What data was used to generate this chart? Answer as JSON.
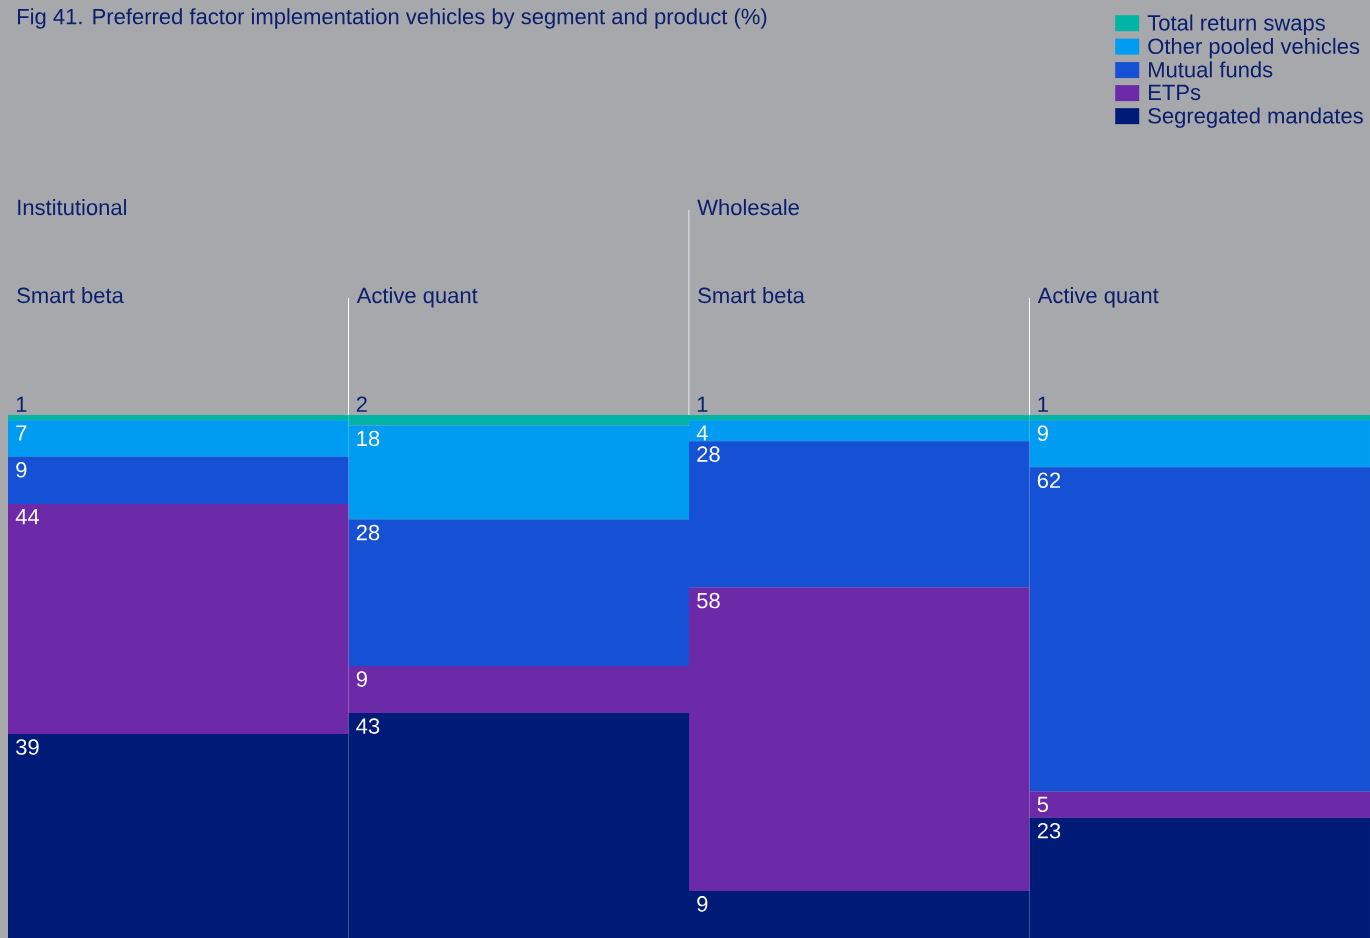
{
  "chart_data": {
    "type": "bar",
    "title": "Fig 41. Preferred factor implementation vehicles by segment and product (%)",
    "categories": [
      "Smart beta",
      "Active quant",
      "Smart beta",
      "Active quant"
    ],
    "annotations": [
      "Institutional",
      "Wholesale"
    ],
    "stacked": true,
    "data_labels": true,
    "legend": "top right",
    "series": [
      {
        "name": "Segregated mandates",
        "color": "#001a78",
        "values": [
          39,
          43,
          9,
          23
        ]
      },
      {
        "name": "ETPs",
        "color": "#6c29a8",
        "values": [
          44,
          9,
          58,
          5
        ]
      },
      {
        "name": "Mutual funds",
        "color": "#1650d4",
        "values": [
          9,
          28,
          28,
          62
        ]
      },
      {
        "name": "Other pooled vehicles",
        "color": "#009cf2",
        "values": [
          7,
          18,
          4,
          9
        ]
      },
      {
        "name": "Total return swaps",
        "color": "#00b5a5",
        "values": [
          1,
          2,
          1,
          1
        ]
      }
    ]
  }
}
